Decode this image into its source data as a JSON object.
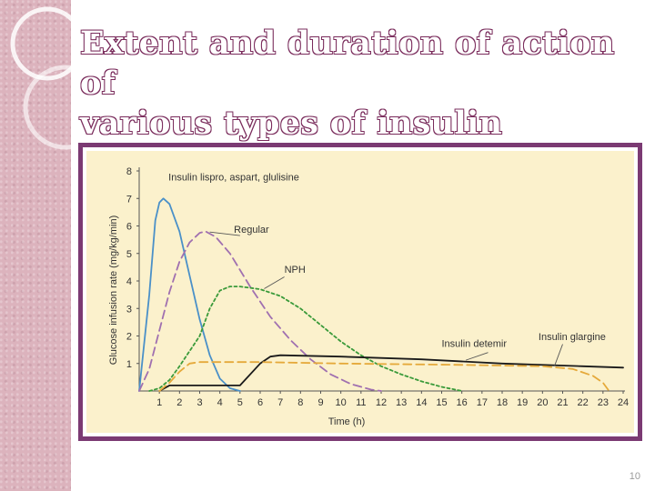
{
  "slide": {
    "title_lines": [
      "Extent and duration of action of",
      "various types of insulin"
    ],
    "page_number": "10"
  },
  "colors": {
    "title_outline": "#7a2c5c",
    "frame": "#7b3a73",
    "chart_background": "#fbf1cc",
    "side_strip": "#dcb3bd"
  },
  "chart_data": {
    "type": "line",
    "title": "",
    "xlabel": "Time (h)",
    "ylabel": "Glucose infusion rate (mg/kg/min)",
    "xlim": [
      0,
      24
    ],
    "ylim": [
      0,
      8
    ],
    "xticks": [
      1,
      2,
      3,
      4,
      5,
      6,
      7,
      8,
      9,
      10,
      11,
      12,
      13,
      14,
      15,
      16,
      17,
      18,
      19,
      20,
      21,
      22,
      23,
      24
    ],
    "yticks": [
      1,
      2,
      3,
      4,
      5,
      6,
      7,
      8
    ],
    "grid": false,
    "legend": "inline labels",
    "series": [
      {
        "name": "Insulin lispro, aspart, glulisine",
        "color": "#4a90c8",
        "dash": "solid",
        "points": [
          [
            0,
            0
          ],
          [
            0.5,
            3.5
          ],
          [
            0.8,
            6.2
          ],
          [
            1,
            6.85
          ],
          [
            1.2,
            7.0
          ],
          [
            1.5,
            6.8
          ],
          [
            2,
            5.8
          ],
          [
            2.5,
            4.2
          ],
          [
            3,
            2.6
          ],
          [
            3.5,
            1.3
          ],
          [
            4,
            0.45
          ],
          [
            4.5,
            0.1
          ],
          [
            5,
            0
          ]
        ]
      },
      {
        "name": "Regular",
        "color": "#a070b0",
        "dash": "dashed",
        "points": [
          [
            0,
            0
          ],
          [
            0.5,
            0.8
          ],
          [
            1,
            2.2
          ],
          [
            1.5,
            3.6
          ],
          [
            2,
            4.7
          ],
          [
            2.5,
            5.4
          ],
          [
            3,
            5.75
          ],
          [
            3.3,
            5.8
          ],
          [
            3.8,
            5.6
          ],
          [
            4.5,
            5.0
          ],
          [
            5.5,
            3.8
          ],
          [
            6.5,
            2.7
          ],
          [
            7.5,
            1.85
          ],
          [
            8.5,
            1.15
          ],
          [
            9.5,
            0.6
          ],
          [
            10.5,
            0.25
          ],
          [
            11.5,
            0.05
          ],
          [
            12,
            0
          ]
        ]
      },
      {
        "name": "NPH",
        "color": "#3a9a3a",
        "dash": "dotted",
        "points": [
          [
            0.5,
            0
          ],
          [
            1,
            0.1
          ],
          [
            1.5,
            0.4
          ],
          [
            2,
            0.9
          ],
          [
            3,
            2.0
          ],
          [
            3.5,
            3.0
          ],
          [
            4,
            3.65
          ],
          [
            4.5,
            3.8
          ],
          [
            5,
            3.8
          ],
          [
            6,
            3.7
          ],
          [
            7,
            3.45
          ],
          [
            8,
            3.0
          ],
          [
            9,
            2.4
          ],
          [
            10,
            1.8
          ],
          [
            11,
            1.3
          ],
          [
            12,
            0.9
          ],
          [
            13,
            0.6
          ],
          [
            14,
            0.35
          ],
          [
            15,
            0.15
          ],
          [
            16,
            0
          ]
        ]
      },
      {
        "name": "Insulin detemir",
        "color": "#1a1a1a",
        "dash": "solid",
        "points": [
          [
            1,
            0
          ],
          [
            1.5,
            0.2
          ],
          [
            5,
            0.2
          ],
          [
            6,
            1.0
          ],
          [
            6.5,
            1.25
          ],
          [
            7,
            1.3
          ],
          [
            10,
            1.25
          ],
          [
            14,
            1.15
          ],
          [
            18,
            1.0
          ],
          [
            22,
            0.9
          ],
          [
            24,
            0.85
          ]
        ]
      },
      {
        "name": "Insulin glargine",
        "color": "#e5a93a",
        "dash": "dashed",
        "points": [
          [
            1,
            0
          ],
          [
            1.5,
            0.3
          ],
          [
            2,
            0.7
          ],
          [
            2.5,
            1.0
          ],
          [
            3,
            1.05
          ],
          [
            6,
            1.05
          ],
          [
            10,
            1.0
          ],
          [
            16,
            0.95
          ],
          [
            20,
            0.9
          ],
          [
            21.5,
            0.8
          ],
          [
            22.5,
            0.55
          ],
          [
            23,
            0.3
          ],
          [
            23.3,
            0
          ]
        ]
      }
    ],
    "annotations": [
      {
        "text": "Insulin lispro, aspart, glulisine",
        "series": 0
      },
      {
        "text": "Regular",
        "series": 1
      },
      {
        "text": "NPH",
        "series": 2
      },
      {
        "text": "Insulin detemir",
        "series": 3
      },
      {
        "text": "Insulin glargine",
        "series": 4
      }
    ]
  }
}
